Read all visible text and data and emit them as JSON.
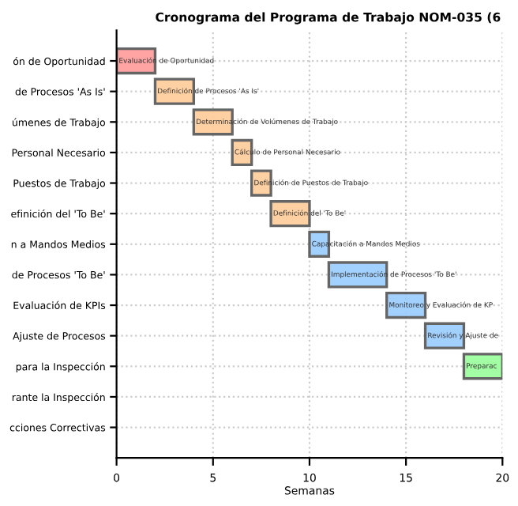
{
  "chart_data": {
    "type": "bar",
    "orientation": "horizontal",
    "title": "Cronograma del Programa de Trabajo NOM-035 (6",
    "xlabel": "Semanas",
    "categories": [
      "ón de Oportunidad",
      "de Procesos 'As Is'",
      "úmenes de Trabajo",
      "Personal Necesario",
      "Puestos de Trabajo",
      "efinición del 'To Be'",
      "n a Mandos Medios",
      "de Procesos 'To Be'",
      "Evaluación de KPIs",
      "Ajuste de Procesos",
      "para la Inspección",
      "rante la Inspección",
      "cciones Correctivas"
    ],
    "series": [
      {
        "color": "#ff9999",
        "base": [
          0,
          null,
          null,
          null,
          null,
          null,
          null,
          null,
          null,
          null,
          null,
          null,
          null
        ],
        "values": [
          2,
          null,
          null,
          null,
          null,
          null,
          null,
          null,
          null,
          null,
          null,
          null,
          null
        ]
      },
      {
        "color": "#ffcc99",
        "base": [
          null,
          2,
          4,
          6,
          7,
          8,
          null,
          null,
          null,
          null,
          null,
          null,
          null
        ],
        "values": [
          null,
          2,
          2,
          1,
          1,
          2,
          null,
          null,
          null,
          null,
          null,
          null,
          null
        ]
      },
      {
        "color": "#99ccff",
        "base": [
          null,
          null,
          null,
          null,
          null,
          null,
          10,
          11,
          14,
          16,
          null,
          null,
          null
        ],
        "values": [
          null,
          null,
          null,
          null,
          null,
          null,
          1,
          3,
          2,
          2,
          null,
          null,
          null
        ]
      },
      {
        "color": "#99ff99",
        "base": [
          null,
          null,
          null,
          null,
          null,
          null,
          null,
          null,
          null,
          null,
          18,
          null,
          null
        ],
        "values": [
          null,
          null,
          null,
          null,
          null,
          null,
          null,
          null,
          null,
          null,
          2,
          null,
          null
        ]
      }
    ],
    "annotations": [
      {
        "text": "Evaluación de Oportunidad",
        "x": 0,
        "y": "ón de Oportunidad"
      },
      {
        "text": "Definición de Procesos 'As Is'",
        "x": 2,
        "y": "de Procesos 'As Is'"
      },
      {
        "text": "Determinación de Volúmenes de Trabajo",
        "x": 4,
        "y": "úmenes de Trabajo"
      },
      {
        "text": "Cálculo de Personal Necesario",
        "x": 6,
        "y": "Personal Necesario"
      },
      {
        "text": "Definición de Puestos de Trabajo",
        "x": 7,
        "y": "Puestos de Trabajo"
      },
      {
        "text": "Definición del 'To Be'",
        "x": 8,
        "y": "efinición del 'To Be'"
      },
      {
        "text": "Capacitación a Mandos Medios",
        "x": 10,
        "y": "n a Mandos Medios"
      },
      {
        "text": "Implementación de Procesos 'To Be'",
        "x": 11,
        "y": "de Procesos 'To Be'"
      },
      {
        "text": "Monitoreo y Evaluación de KP",
        "x": 14,
        "y": "Evaluación de KPIs"
      },
      {
        "text": "Revisión y Ajuste de",
        "x": 16,
        "y": "Ajuste de Procesos"
      },
      {
        "text": "Preparac",
        "x": 18,
        "y": "para la Inspección"
      }
    ],
    "xlim": [
      0,
      20
    ],
    "xticks": [
      0,
      5,
      10,
      15,
      20
    ],
    "grid": true
  }
}
